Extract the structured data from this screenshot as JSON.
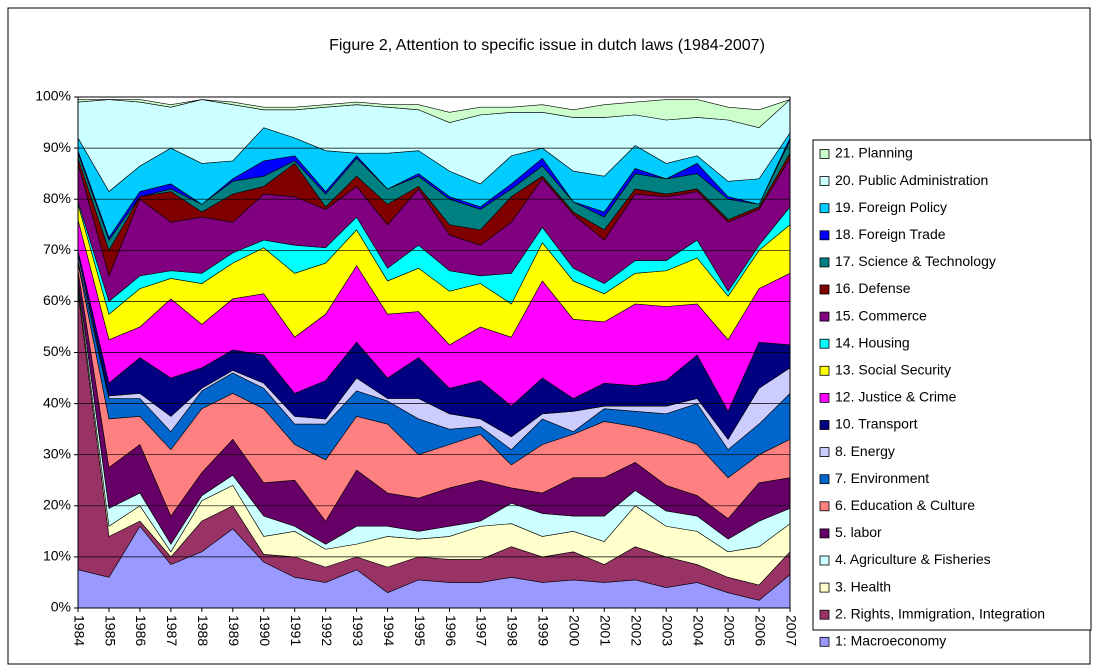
{
  "chart_data": {
    "type": "stacked_area",
    "title": "Figure 2, Attention to specific issue in dutch laws (1984-2007)",
    "categories": [
      "1984",
      "1985",
      "1986",
      "1987",
      "1988",
      "1989",
      "1990",
      "1991",
      "1992",
      "1993",
      "1994",
      "1995",
      "1996",
      "1997",
      "1998",
      "1999",
      "2000",
      "2001",
      "2002",
      "2003",
      "2004",
      "2005",
      "2006",
      "2007"
    ],
    "ylim": [
      0,
      100
    ],
    "yticks": [
      {
        "value": 0,
        "label": "0%"
      },
      {
        "value": 10,
        "label": "10%"
      },
      {
        "value": 20,
        "label": "20%"
      },
      {
        "value": 30,
        "label": "30%"
      },
      {
        "value": 40,
        "label": "40%"
      },
      {
        "value": 50,
        "label": "50%"
      },
      {
        "value": 60,
        "label": "60%"
      },
      {
        "value": 70,
        "label": "70%"
      },
      {
        "value": 80,
        "label": "80%"
      },
      {
        "value": 90,
        "label": "90%"
      },
      {
        "value": 100,
        "label": "100%"
      }
    ],
    "grid": true,
    "legend": "right",
    "series": [
      {
        "name": "1: Macroeconomy",
        "color": "#9999ff",
        "values": [
          7.5,
          6,
          16,
          8.5,
          11,
          15.5,
          9,
          6,
          5,
          7.5,
          3,
          5.5,
          5,
          5,
          6,
          5,
          5.5,
          5,
          5.5,
          4,
          5,
          3,
          1.5,
          6.5
        ]
      },
      {
        "name": "2. Rights, Immigration, Integration",
        "color": "#993366",
        "values": [
          54.5,
          8,
          1,
          1.5,
          6,
          4.5,
          1.5,
          4,
          3,
          2.5,
          5,
          4.5,
          4.5,
          4.5,
          6,
          5,
          5.5,
          3.5,
          6.5,
          6,
          3.5,
          3,
          3,
          4.5
        ]
      },
      {
        "name": "3. Health",
        "color": "#ffffcc",
        "values": [
          1,
          2,
          3,
          1,
          4,
          4,
          3.5,
          5,
          3.5,
          2.5,
          6,
          3.5,
          4.5,
          6.5,
          4.5,
          4,
          4,
          4.5,
          8,
          6,
          6.5,
          5,
          7.5,
          5.5
        ]
      },
      {
        "name": "4. Agriculture & Fisheries",
        "color": "#ccffff",
        "values": [
          1,
          3.5,
          2.5,
          1.5,
          1,
          2,
          4,
          1,
          1,
          3.5,
          2,
          1.5,
          2,
          1,
          4,
          4.5,
          3,
          5,
          3,
          3,
          3,
          2.5,
          5,
          3
        ]
      },
      {
        "name": "5. labor",
        "color": "#660066",
        "values": [
          2,
          8,
          9.5,
          5.5,
          4.5,
          7,
          6.5,
          9,
          4.5,
          11,
          6.5,
          6.5,
          7.5,
          8,
          3,
          4,
          7.5,
          7.5,
          5.5,
          5,
          4,
          4,
          7.5,
          6
        ]
      },
      {
        "name": "6. Education & Culture",
        "color": "#ff8080",
        "values": [
          1.5,
          9.5,
          5.5,
          13,
          12.5,
          9,
          14.5,
          7,
          12,
          10.5,
          13.5,
          8.5,
          8.5,
          9,
          4.5,
          9.5,
          8.5,
          11,
          7,
          10,
          10,
          8,
          5.5,
          7.5
        ]
      },
      {
        "name": "7. Environment",
        "color": "#0066cc",
        "values": [
          0.5,
          4,
          3.5,
          3.5,
          3.5,
          4,
          4,
          4,
          7,
          5,
          4.5,
          7,
          3,
          1.5,
          3,
          5,
          0.5,
          2.5,
          3,
          4,
          8,
          5.5,
          6,
          9
        ]
      },
      {
        "name": "8. Energy",
        "color": "#ccccff",
        "values": [
          1,
          0.5,
          1,
          3,
          0.5,
          0.5,
          1,
          1.5,
          1,
          2.5,
          0.5,
          4,
          3,
          1.5,
          2.5,
          1,
          4,
          0.5,
          1,
          1.5,
          1,
          2,
          7,
          5
        ]
      },
      {
        "name": "10. Transport",
        "color": "#000080",
        "values": [
          1,
          2.5,
          7,
          7.5,
          4,
          4,
          5.5,
          4.5,
          7.5,
          7,
          4,
          8,
          5,
          7.5,
          6,
          7,
          2.5,
          4.5,
          4,
          5,
          8.5,
          5.5,
          9,
          4.5
        ]
      },
      {
        "name": "12. Justice & Crime",
        "color": "#ff00ff",
        "values": [
          6,
          8.5,
          6,
          15.5,
          8.5,
          10,
          12,
          11,
          13,
          15,
          12.5,
          9,
          8.5,
          10.5,
          13.5,
          19,
          15.5,
          12,
          16,
          14.5,
          10,
          14,
          10.5,
          14
        ]
      },
      {
        "name": "13. Social Security",
        "color": "#ffff00",
        "values": [
          3,
          5,
          7.5,
          4,
          8,
          7,
          9,
          12.5,
          10,
          7,
          6.5,
          8.5,
          10.5,
          8.5,
          6.5,
          7.5,
          7.5,
          5.5,
          6,
          7,
          9,
          8.5,
          7.5,
          9.5
        ]
      },
      {
        "name": "14. Housing",
        "color": "#00ffff",
        "values": [
          0.5,
          2.5,
          2.5,
          1.5,
          2,
          2,
          1.5,
          5.5,
          3,
          2.5,
          2.5,
          4.5,
          4,
          1.5,
          6,
          3,
          2.5,
          2,
          2.5,
          2,
          3.5,
          1,
          1,
          3.5
        ]
      },
      {
        "name": "15. Commerce",
        "color": "#800080",
        "values": [
          7.5,
          5,
          15,
          9.5,
          11,
          6,
          9,
          9.5,
          7.5,
          6,
          8.5,
          11,
          7,
          6,
          10,
          9.5,
          10.5,
          8.5,
          13,
          12.5,
          9.5,
          13.5,
          7,
          9.5
        ]
      },
      {
        "name": "16. Defense",
        "color": "#800000",
        "values": [
          1,
          5,
          0.5,
          6,
          1,
          5.5,
          1.5,
          6.5,
          0.5,
          2,
          4,
          0.5,
          2,
          3,
          5,
          0.5,
          0.5,
          2,
          1,
          0.5,
          0.5,
          0.5,
          0.5,
          1
        ]
      },
      {
        "name": "17. Science & Technology",
        "color": "#008080",
        "values": [
          1,
          2,
          0,
          0.5,
          1.5,
          2.5,
          2,
          0.5,
          2.5,
          3.5,
          3,
          2,
          5,
          4,
          1.5,
          2,
          2,
          2.5,
          3,
          3,
          3,
          4,
          0.5,
          2.5
        ]
      },
      {
        "name": "18. Foreign Trade",
        "color": "#0000ff",
        "values": [
          0.5,
          0.5,
          1,
          1,
          0,
          0.5,
          3,
          1,
          0.5,
          0.5,
          0,
          0.5,
          0.5,
          0.5,
          1,
          1.5,
          0,
          1,
          1,
          0,
          2,
          0.5,
          0,
          0.5
        ]
      },
      {
        "name": "19. Foreign Policy",
        "color": "#00ccff",
        "values": [
          2.5,
          9,
          5,
          7,
          8,
          3.5,
          6.5,
          3.5,
          8,
          0.5,
          7,
          4.5,
          5,
          4.5,
          5.5,
          2,
          6,
          7,
          4.5,
          3,
          1.5,
          3,
          5,
          1
        ]
      },
      {
        "name": "20. Public Administration",
        "color": "#ccffff",
        "values": [
          7,
          18,
          12.5,
          8,
          12.5,
          11,
          3.5,
          5.5,
          8.5,
          9.5,
          9,
          8,
          9.5,
          13.5,
          8.5,
          7,
          10.5,
          11.5,
          6,
          8.5,
          7.5,
          12,
          10,
          6.5
        ]
      },
      {
        "name": "21. Planning",
        "color": "#ccffcc",
        "values": [
          0.5,
          0,
          0.5,
          0.5,
          0,
          0.5,
          0.5,
          0.5,
          0.5,
          0.5,
          0.5,
          1,
          2,
          1.5,
          1,
          1.5,
          1.5,
          2.5,
          2.5,
          4,
          3.5,
          2.5,
          3.5,
          0
        ]
      }
    ]
  }
}
